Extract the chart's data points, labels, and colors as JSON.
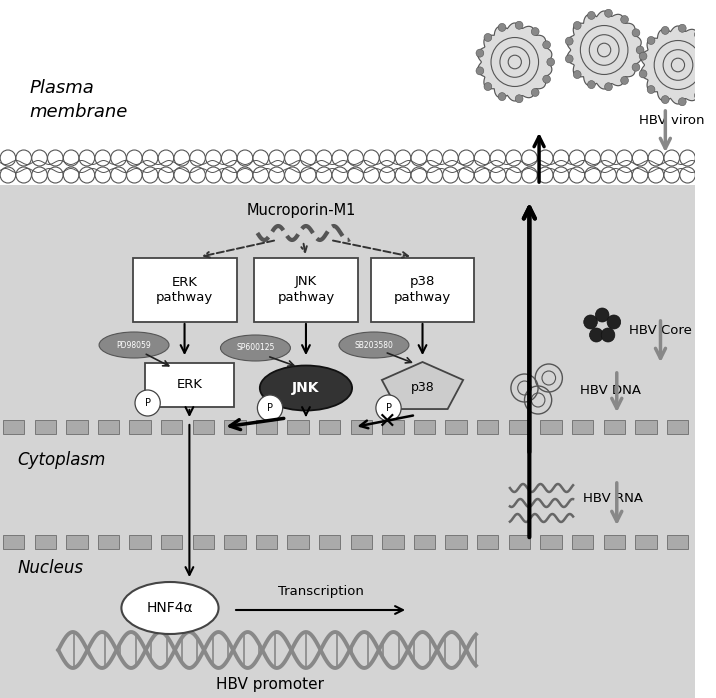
{
  "bg_white": "#ffffff",
  "bg_gray": "#d8d8d8",
  "plasma_membrane_text": "Plasma\nmembrane",
  "cytoplasm_text": "Cytoplasm",
  "nucleus_text": "Nucleus",
  "mucroporin_text": "Mucroporin-M1",
  "erk_pathway_text": "ERK\npathway",
  "jnk_pathway_text": "JNK\npathway",
  "p38_pathway_text": "p38\npathway",
  "erk_text": "ERK",
  "jnk_text": "JNK",
  "p38_text": "p38",
  "hnf4a_text": "HNF4α",
  "transcription_text": "Transcription",
  "hbv_promoter_text": "HBV promoter",
  "hbv_viron_text": "HBV viron",
  "hbv_core_text": "HBV Core",
  "hbv_dna_text": "HBV DNA",
  "hbv_rna_text": "HBV RNA",
  "inhibitor1": "PD98059",
  "inhibitor2": "SP600125",
  "inhibitor3": "SB203580"
}
